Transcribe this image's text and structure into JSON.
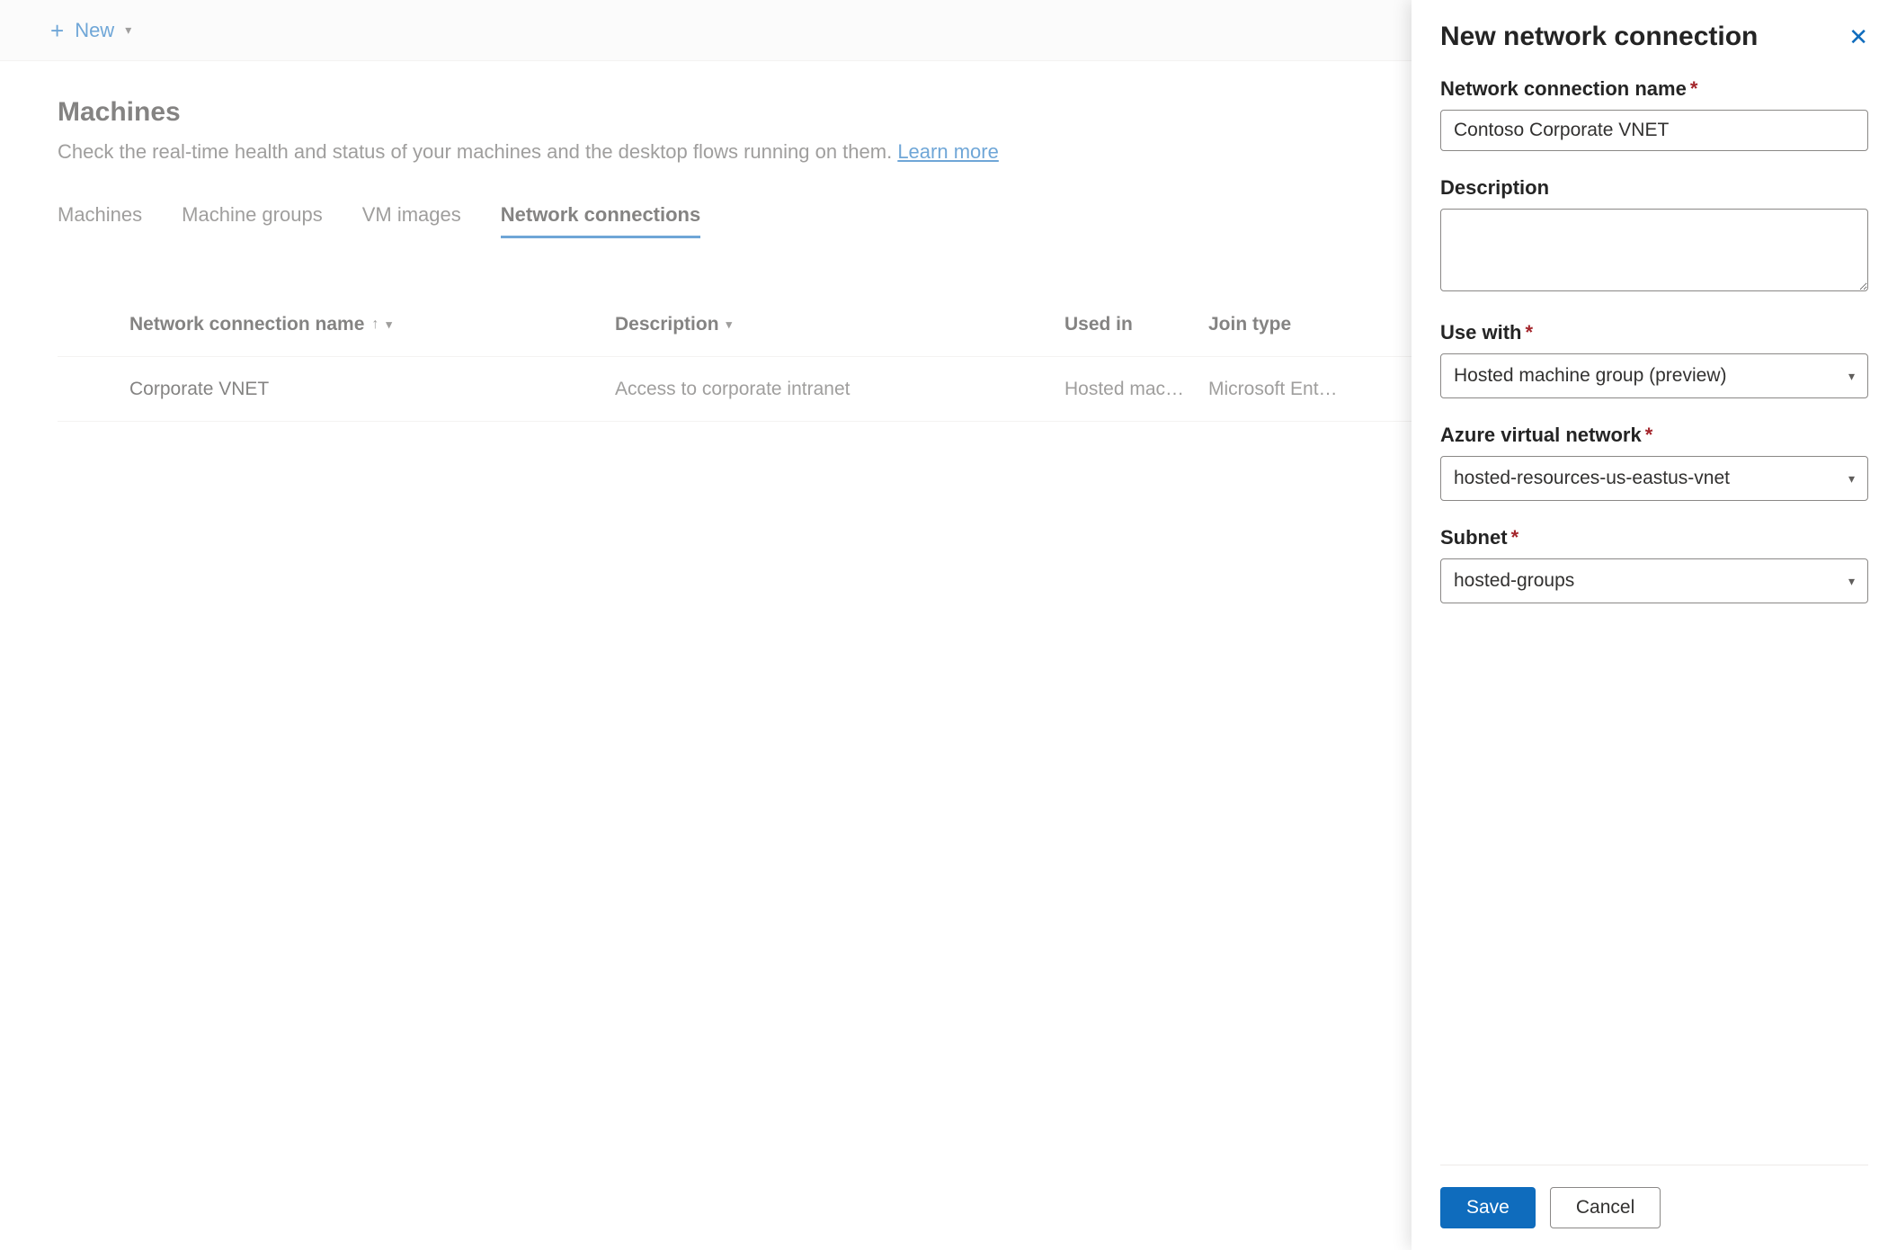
{
  "colors": {
    "accent": "#0f6cbd",
    "text_primary": "#323130",
    "text_secondary": "#605e5c",
    "border": "#edebe9",
    "required": "#a4262c",
    "cmdbar_bg": "#f8f8f8"
  },
  "commandBar": {
    "new_label": "New"
  },
  "page": {
    "title": "Machines",
    "subtitle_text": "Check the real-time health and status of your machines and the desktop flows running on them. ",
    "learn_more": "Learn more"
  },
  "tabs": [
    {
      "label": "Machines",
      "active": false
    },
    {
      "label": "Machine groups",
      "active": false
    },
    {
      "label": "VM images",
      "active": false
    },
    {
      "label": "Network connections",
      "active": true
    }
  ],
  "table": {
    "columns": {
      "name": "Network connection name",
      "description": "Description",
      "used_in": "Used in",
      "join_type": "Join type"
    },
    "rows": [
      {
        "name": "Corporate VNET",
        "description": "Access to corporate intranet",
        "used_in": "Hosted mach…",
        "join_type": "Microsoft Ent…"
      }
    ]
  },
  "panel": {
    "title": "New network connection",
    "fields": {
      "name": {
        "label": "Network connection name",
        "value": "Contoso Corporate VNET",
        "required": true
      },
      "description": {
        "label": "Description",
        "value": "",
        "required": false
      },
      "use_with": {
        "label": "Use with",
        "value": "Hosted machine group (preview)",
        "required": true
      },
      "vnet": {
        "label": "Azure virtual network",
        "value": "hosted-resources-us-eastus-vnet",
        "required": true
      },
      "subnet": {
        "label": "Subnet",
        "value": "hosted-groups",
        "required": true
      }
    },
    "buttons": {
      "save": "Save",
      "cancel": "Cancel"
    }
  }
}
